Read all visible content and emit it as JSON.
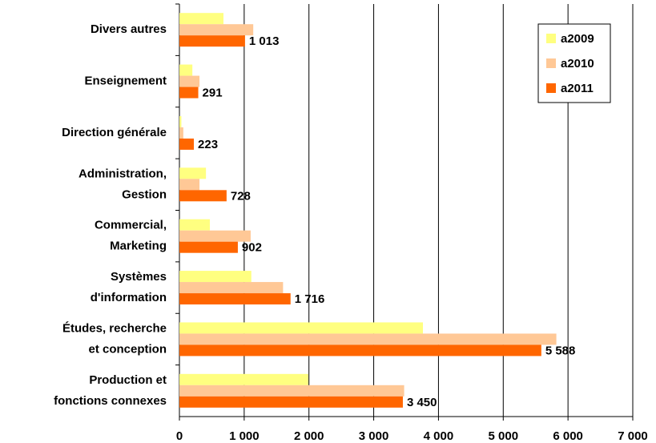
{
  "chart_data": {
    "type": "barh",
    "categories": [
      [
        "Divers autres"
      ],
      [
        "Enseignement"
      ],
      [
        "Direction générale"
      ],
      [
        "Administration,",
        "Gestion"
      ],
      [
        "Commercial,",
        "Marketing"
      ],
      [
        "Systèmes",
        "d'information"
      ],
      [
        "Études, recherche",
        "et conception"
      ],
      [
        "Production et",
        "fonctions connexes"
      ]
    ],
    "series": [
      {
        "name": "a2009",
        "color": "#ffff80",
        "values": [
          680,
          200,
          30,
          410,
          470,
          1110,
          3760,
          1990
        ]
      },
      {
        "name": "a2010",
        "color": "#ffc896",
        "values": [
          1140,
          310,
          60,
          310,
          1100,
          1600,
          5820,
          3470
        ]
      },
      {
        "name": "a2011",
        "color": "#ff6600",
        "values": [
          1013,
          291,
          223,
          728,
          902,
          1716,
          5588,
          3450
        ],
        "value_labels": [
          "1 013",
          "291",
          "223",
          "728",
          "902",
          "1 716",
          "5 588",
          "3 450"
        ]
      }
    ],
    "xlim": [
      0,
      7000
    ],
    "xticks": [
      0,
      {
        "value": 1000,
        "label": "1 000"
      },
      {
        "value": 2000,
        "label": "2 000"
      },
      {
        "value": 3000,
        "label": "3 000"
      },
      {
        "value": 4000,
        "label": "4 000"
      },
      {
        "value": 5000,
        "label": "5 000"
      },
      {
        "value": 6000,
        "label": "6 000"
      },
      {
        "value": 7000,
        "label": "7 000"
      }
    ],
    "grid": true,
    "legend": "top-right"
  }
}
